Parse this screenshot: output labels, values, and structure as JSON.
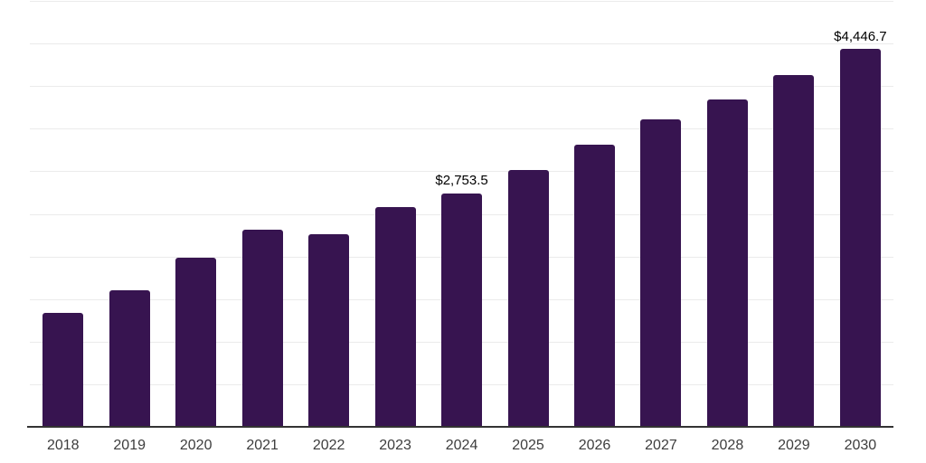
{
  "chart_data": {
    "type": "bar",
    "title": "",
    "xlabel": "",
    "ylabel": "",
    "categories": [
      "2018",
      "2019",
      "2020",
      "2021",
      "2022",
      "2023",
      "2024",
      "2025",
      "2026",
      "2027",
      "2028",
      "2029",
      "2030"
    ],
    "values": [
      1345,
      1610,
      2000,
      2325,
      2275,
      2590,
      2753.5,
      3025,
      3320,
      3625,
      3855,
      4140,
      4446.7
    ],
    "annotations": [
      {
        "category": "2024",
        "text": "$2,753.5"
      },
      {
        "category": "2030",
        "text": "$4,446.7"
      }
    ],
    "ylim": [
      0,
      5000
    ],
    "gridline_interval": 500,
    "grid": "horizontal-only",
    "y_tick_labels_visible": false,
    "legend": "none",
    "colors": {
      "bar": "#371450",
      "gridline": "#ebebeb",
      "axis": "#333333",
      "x_tick_label": "#3d3d3d",
      "value_label": "#000000",
      "background": "#ffffff"
    }
  }
}
